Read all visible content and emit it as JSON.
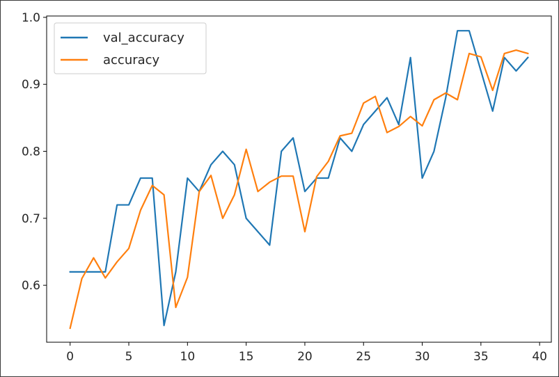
{
  "chart_data": {
    "type": "line",
    "title": "",
    "xlabel": "",
    "ylabel": "",
    "xlim": [
      -2.0,
      41.0
    ],
    "ylim": [
      0.515,
      1.002
    ],
    "xticks": [
      0,
      5,
      10,
      15,
      20,
      25,
      30,
      35,
      40
    ],
    "yticks": [
      0.6,
      0.7,
      0.8,
      0.9,
      1.0
    ],
    "xtick_labels": [
      "0",
      "5",
      "10",
      "15",
      "20",
      "25",
      "30",
      "35",
      "40"
    ],
    "ytick_labels": [
      "0.6",
      "0.7",
      "0.8",
      "0.9",
      "1.0"
    ],
    "grid": false,
    "legend_position": "upper-left",
    "x": [
      0,
      1,
      2,
      3,
      4,
      5,
      6,
      7,
      8,
      9,
      10,
      11,
      12,
      13,
      14,
      15,
      16,
      17,
      18,
      19,
      20,
      21,
      22,
      23,
      24,
      25,
      26,
      27,
      28,
      29,
      30,
      31,
      32,
      33,
      34,
      35,
      36,
      37,
      38,
      39
    ],
    "series": [
      {
        "name": "val_accuracy",
        "color": "#1f77b4",
        "values": [
          0.62,
          0.62,
          0.62,
          0.62,
          0.72,
          0.72,
          0.76,
          0.76,
          0.54,
          0.62,
          0.76,
          0.74,
          0.78,
          0.8,
          0.78,
          0.7,
          0.68,
          0.66,
          0.8,
          0.82,
          0.74,
          0.76,
          0.76,
          0.82,
          0.8,
          0.84,
          0.86,
          0.88,
          0.84,
          0.94,
          0.76,
          0.8,
          0.88,
          0.98,
          0.98,
          0.92,
          0.86,
          0.94,
          0.92,
          0.94
        ]
      },
      {
        "name": "accuracy",
        "color": "#ff7f0e",
        "values": [
          0.536,
          0.61,
          0.641,
          0.611,
          0.635,
          0.655,
          0.712,
          0.749,
          0.735,
          0.567,
          0.612,
          0.74,
          0.764,
          0.7,
          0.735,
          0.803,
          0.74,
          0.754,
          0.763,
          0.763,
          0.68,
          0.762,
          0.785,
          0.823,
          0.827,
          0.872,
          0.882,
          0.828,
          0.837,
          0.852,
          0.838,
          0.877,
          0.887,
          0.877,
          0.946,
          0.941,
          0.891,
          0.946,
          0.951,
          0.946
        ]
      }
    ]
  }
}
